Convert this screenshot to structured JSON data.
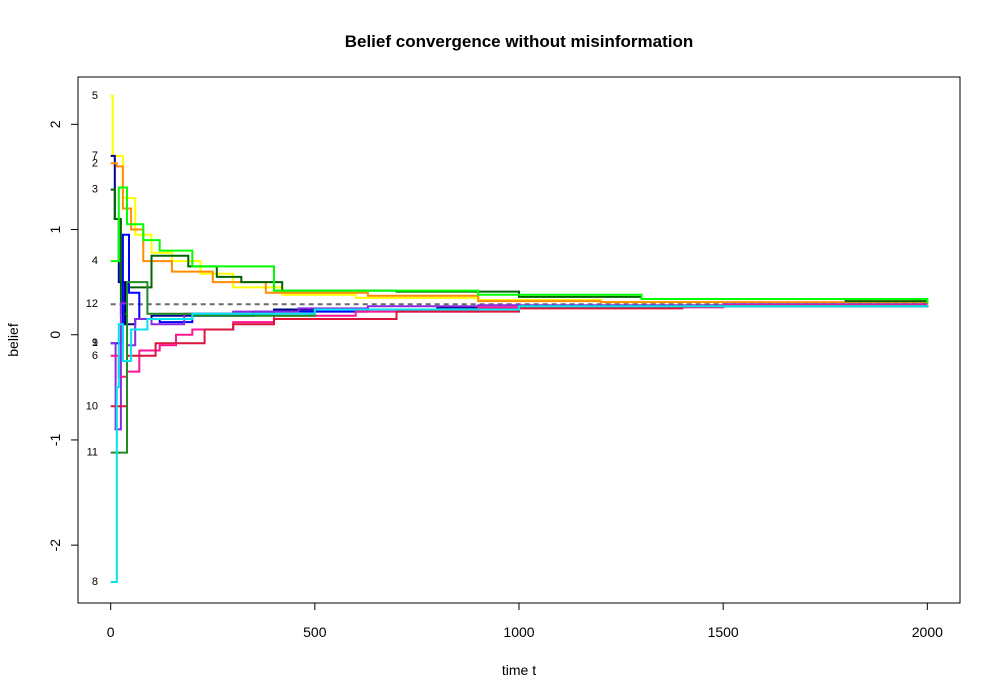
{
  "chart_data": {
    "type": "line",
    "title": "Belief convergence without misinformation",
    "xlabel": "time t",
    "ylabel": "belief",
    "xlim": [
      -80,
      2080
    ],
    "ylim": [
      -2.55,
      2.45
    ],
    "x_ticks": [
      0,
      500,
      1000,
      1500,
      2000
    ],
    "y_ticks": [
      -2,
      -1,
      0,
      1,
      2
    ],
    "consensus_value": 0.29,
    "series": [
      {
        "name": "5",
        "color": "#FFFF00",
        "points": [
          [
            0,
            2.27
          ],
          [
            5,
            1.7
          ],
          [
            30,
            1.3
          ],
          [
            60,
            0.95
          ],
          [
            100,
            0.78
          ],
          [
            150,
            0.7
          ],
          [
            220,
            0.58
          ],
          [
            300,
            0.45
          ],
          [
            420,
            0.38
          ],
          [
            600,
            0.35
          ],
          [
            900,
            0.33
          ],
          [
            1200,
            0.31
          ],
          [
            1600,
            0.3
          ],
          [
            2000,
            0.29
          ]
        ]
      },
      {
        "name": "7",
        "color": "#00008B",
        "points": [
          [
            0,
            1.7
          ],
          [
            10,
            1.1
          ],
          [
            20,
            0.5
          ],
          [
            35,
            0.1
          ],
          [
            60,
            0.15
          ],
          [
            100,
            0.18
          ],
          [
            200,
            0.2
          ],
          [
            400,
            0.24
          ],
          [
            800,
            0.26
          ],
          [
            1200,
            0.27
          ],
          [
            2000,
            0.28
          ]
        ]
      },
      {
        "name": "2",
        "color": "#FF8C00",
        "points": [
          [
            0,
            1.63
          ],
          [
            15,
            1.6
          ],
          [
            30,
            1.2
          ],
          [
            50,
            1.0
          ],
          [
            80,
            0.7
          ],
          [
            150,
            0.6
          ],
          [
            250,
            0.5
          ],
          [
            380,
            0.4
          ],
          [
            630,
            0.37
          ],
          [
            900,
            0.32
          ],
          [
            1200,
            0.31
          ],
          [
            2000,
            0.29
          ]
        ]
      },
      {
        "name": "3",
        "color": "#006400",
        "points": [
          [
            0,
            1.38
          ],
          [
            10,
            1.1
          ],
          [
            25,
            0.2
          ],
          [
            40,
            0.45
          ],
          [
            100,
            0.75
          ],
          [
            190,
            0.65
          ],
          [
            260,
            0.55
          ],
          [
            320,
            0.5
          ],
          [
            420,
            0.42
          ],
          [
            700,
            0.41
          ],
          [
            1000,
            0.36
          ],
          [
            1300,
            0.34
          ],
          [
            1500,
            0.34
          ],
          [
            1800,
            0.32
          ],
          [
            2000,
            0.31
          ]
        ]
      },
      {
        "name": "4",
        "color": "#00FF00",
        "points": [
          [
            0,
            0.7
          ],
          [
            20,
            1.4
          ],
          [
            40,
            1.05
          ],
          [
            80,
            0.9
          ],
          [
            120,
            0.8
          ],
          [
            200,
            0.65
          ],
          [
            400,
            0.42
          ],
          [
            900,
            0.38
          ],
          [
            1300,
            0.34
          ],
          [
            2000,
            0.3
          ]
        ]
      },
      {
        "name": "12",
        "color": "#696969",
        "points": [
          [
            0,
            0.29
          ],
          [
            2000,
            0.29
          ]
        ]
      },
      {
        "name": "9",
        "color": "#0000FF",
        "points": [
          [
            0,
            -0.08
          ],
          [
            15,
            -0.08
          ],
          [
            30,
            0.95
          ],
          [
            45,
            0.4
          ],
          [
            70,
            0.15
          ],
          [
            120,
            0.12
          ],
          [
            200,
            0.18
          ],
          [
            350,
            0.22
          ],
          [
            630,
            0.24
          ],
          [
            1000,
            0.27
          ],
          [
            1500,
            0.28
          ],
          [
            2000,
            0.28
          ]
        ]
      },
      {
        "name": "1",
        "color": "#8A2BE2",
        "points": [
          [
            0,
            -0.08
          ],
          [
            12,
            -0.9
          ],
          [
            25,
            0.3
          ],
          [
            40,
            -0.1
          ],
          [
            60,
            0.15
          ],
          [
            100,
            0.1
          ],
          [
            180,
            0.2
          ],
          [
            300,
            0.22
          ],
          [
            460,
            0.25
          ],
          [
            630,
            0.27
          ],
          [
            900,
            0.28
          ],
          [
            1500,
            0.29
          ],
          [
            2000,
            0.29
          ]
        ]
      },
      {
        "name": "6",
        "color": "#FF1493",
        "points": [
          [
            0,
            -0.2
          ],
          [
            20,
            -0.4
          ],
          [
            40,
            -0.35
          ],
          [
            70,
            -0.15
          ],
          [
            120,
            -0.1
          ],
          [
            160,
            0.0
          ],
          [
            200,
            0.05
          ],
          [
            300,
            0.12
          ],
          [
            400,
            0.18
          ],
          [
            600,
            0.22
          ],
          [
            900,
            0.26
          ],
          [
            1500,
            0.28
          ],
          [
            2000,
            0.28
          ]
        ]
      },
      {
        "name": "10",
        "color": "#DC143C",
        "points": [
          [
            0,
            -0.68
          ],
          [
            20,
            -0.68
          ],
          [
            40,
            -0.2
          ],
          [
            80,
            -0.2
          ],
          [
            110,
            -0.08
          ],
          [
            200,
            -0.08
          ],
          [
            230,
            0.05
          ],
          [
            300,
            0.1
          ],
          [
            400,
            0.15
          ],
          [
            700,
            0.22
          ],
          [
            1000,
            0.25
          ],
          [
            1400,
            0.27
          ],
          [
            2000,
            0.28
          ]
        ]
      },
      {
        "name": "11",
        "color": "#228B22",
        "points": [
          [
            0,
            -1.12
          ],
          [
            30,
            -1.12
          ],
          [
            40,
            0.5
          ],
          [
            60,
            0.5
          ],
          [
            90,
            0.2
          ],
          [
            200,
            0.18
          ],
          [
            500,
            0.24
          ],
          [
            1000,
            0.27
          ],
          [
            2000,
            0.28
          ]
        ]
      },
      {
        "name": "8",
        "color": "#00E5EE",
        "points": [
          [
            0,
            -2.35
          ],
          [
            12,
            -2.35
          ],
          [
            15,
            -0.5
          ],
          [
            20,
            0.1
          ],
          [
            30,
            -0.25
          ],
          [
            50,
            0.05
          ],
          [
            90,
            0.15
          ],
          [
            200,
            0.2
          ],
          [
            500,
            0.24
          ],
          [
            1000,
            0.27
          ],
          [
            2000,
            0.28
          ]
        ]
      }
    ]
  }
}
